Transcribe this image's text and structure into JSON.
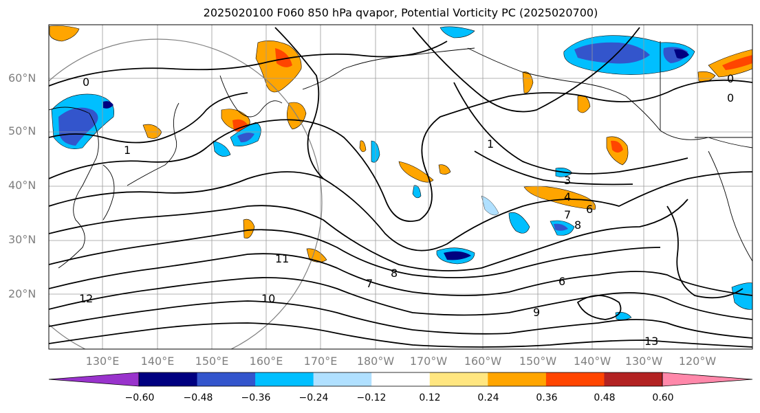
{
  "title": "2025020100 F060 850 hPa qvapor, Potential Vorticity PC (2025020700)",
  "lat_labels": [
    "60°N",
    "50°N",
    "40°N",
    "30°N",
    "20°N"
  ],
  "lon_labels": [
    "130°E",
    "140°E",
    "150°E",
    "160°E",
    "170°E",
    "180°W",
    "170°W",
    "160°W",
    "150°W",
    "140°W",
    "130°W",
    "120°W"
  ],
  "colorbar": {
    "ticks": [
      "−0.60",
      "−0.48",
      "−0.36",
      "−0.24",
      "−0.12",
      "0.12",
      "0.24",
      "0.36",
      "0.48",
      "0.60"
    ],
    "colors": [
      "#9933cc",
      "#000080",
      "#3355cc",
      "#00bfff",
      "#b0e0ff",
      "#ffffff",
      "#ffe680",
      "#ffa500",
      "#ff4500",
      "#b22222",
      "#ff88aa"
    ]
  },
  "contour_labels": [
    "0",
    "0",
    "0",
    "1",
    "1",
    "3",
    "4",
    "6",
    "7",
    "8",
    "9",
    "10",
    "11",
    "12",
    "13",
    "8",
    "6",
    "7"
  ]
}
